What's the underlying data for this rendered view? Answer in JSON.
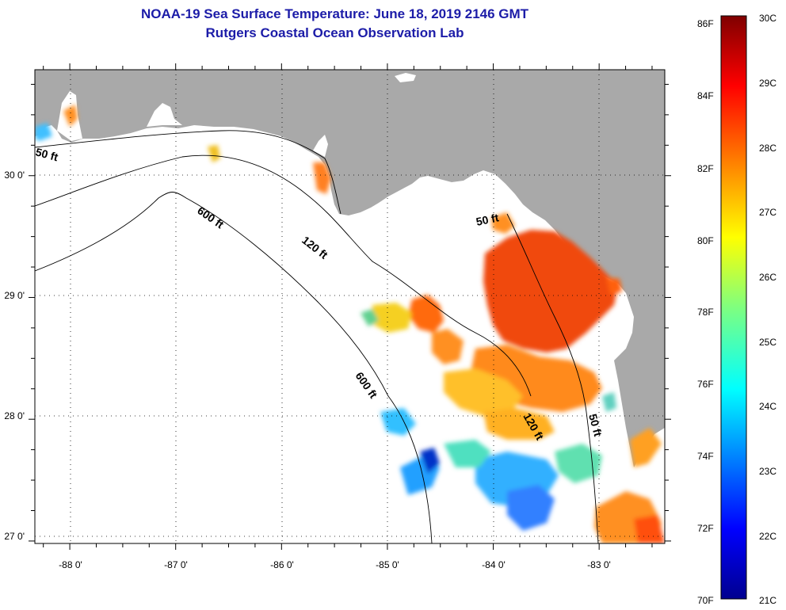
{
  "header": {
    "title": "NOAA-19 Sea Surface Temperature:  June 18, 2019 2146 GMT",
    "subtitle": "Rutgers Coastal Ocean Observation Lab"
  },
  "map": {
    "lon_range": [
      -88.33,
      -82.38
    ],
    "lat_range": [
      26.98,
      30.87
    ],
    "lon_ticks": [
      -88,
      -87,
      -86,
      -85,
      -84,
      -83
    ],
    "lon_tick_labels": [
      "-88 0'",
      "-87 0'",
      "-86 0'",
      "-85 0'",
      "-84 0'",
      "-83 0'"
    ],
    "lat_ticks": [
      30,
      29,
      28,
      27
    ],
    "lat_tick_labels": [
      "30 0'",
      "29 0'",
      "28 0'",
      "27 0'"
    ],
    "grid": true,
    "land_color": "#a9a9a9",
    "ocean_color": "#ffffff",
    "isobath_labels": [
      {
        "text": "50 ft"
      },
      {
        "text": "600 ft"
      },
      {
        "text": "120 ft"
      },
      {
        "text": "50 ft"
      },
      {
        "text": "600 ft"
      },
      {
        "text": "120 ft"
      },
      {
        "text": "50 ft"
      }
    ]
  },
  "colorbar": {
    "range_c": [
      21,
      30
    ],
    "range_f": [
      70,
      86
    ],
    "celsius_labels": [
      "30C",
      "29C",
      "28C",
      "27C",
      "26C",
      "25C",
      "24C",
      "23C",
      "22C",
      "21C"
    ],
    "fahrenheit_labels": [
      "86F",
      "84F",
      "82F",
      "80F",
      "78F",
      "76F",
      "74F",
      "72F",
      "70F"
    ],
    "colors": [
      "#00008f",
      "#0000ff",
      "#007fff",
      "#00ffff",
      "#7fff7f",
      "#ffff00",
      "#ff7f00",
      "#ff0000",
      "#7f0000"
    ]
  }
}
